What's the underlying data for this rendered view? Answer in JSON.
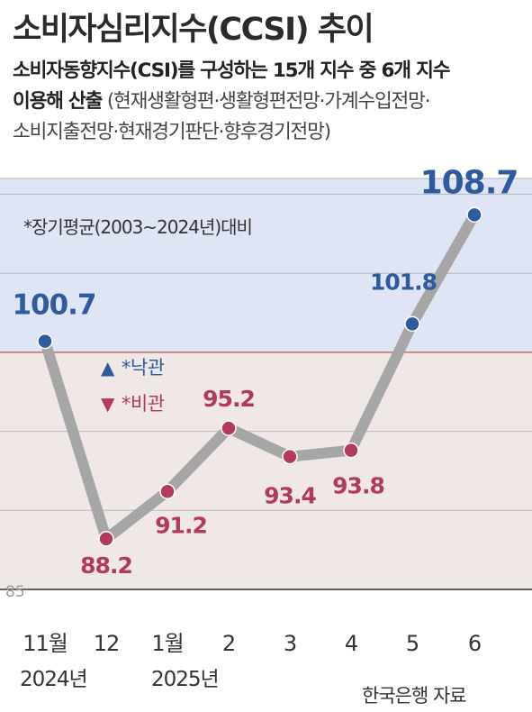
{
  "title": "소비자심리지수(CCSI) 추이",
  "subtitle": {
    "line1": "소비자동향지수(CSI)를 구성하는 15개 지수 중 6개 지수",
    "line2_bold": "이용해 산출",
    "line2_rest": " (현재생활형편·생활형편전망·가계수입전망·",
    "line3": "소비지출전망·현재경기판단·향후경기전망)"
  },
  "note": "*장기평균(2003~2024년)대비",
  "legend": {
    "up": "*낙관",
    "down": "*비관"
  },
  "source": "한국은행 자료",
  "colors": {
    "optimistic_bg": "#dfe5f4",
    "pessimistic_bg": "#efe8e6",
    "line": "#a6a6a6",
    "up_point": "#2e5aa0",
    "down_point": "#b23a5a"
  },
  "chart_data": {
    "type": "line",
    "title": "소비자심리지수(CCSI) 추이",
    "categories": [
      "11월",
      "12",
      "1월",
      "2",
      "3",
      "4",
      "5",
      "6"
    ],
    "year_labels": [
      "2024년",
      "2025년"
    ],
    "values": [
      100.7,
      88.2,
      91.2,
      95.2,
      93.4,
      93.8,
      101.8,
      108.7
    ],
    "labels": [
      "100.7",
      "88.2",
      "91.2",
      "95.2",
      "93.4",
      "93.8",
      "101.8",
      "108.7"
    ],
    "baseline": 100,
    "y_tick_labels": [
      "85"
    ],
    "ylim": [
      85,
      111
    ],
    "grid": true
  }
}
